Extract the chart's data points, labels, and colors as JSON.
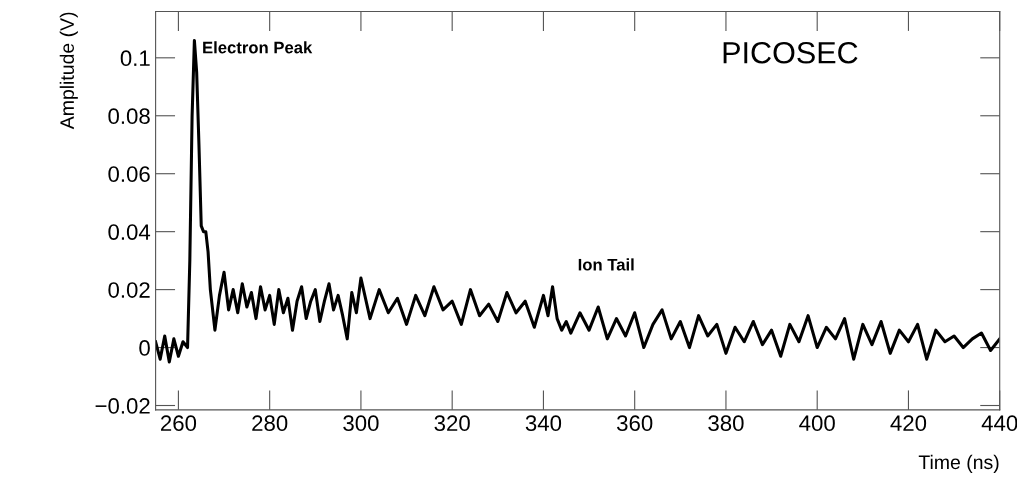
{
  "chart_data": {
    "type": "line",
    "xlabel": "Time (ns)",
    "ylabel": "Amplitude (V)",
    "annotations": [
      "Electron Peak",
      "Ion Tail",
      "PICOSEC"
    ],
    "series": [
      {
        "color": "#000000",
        "x": [
          255,
          256,
          257,
          258,
          259,
          260,
          261,
          262,
          262.5,
          263,
          263.5,
          264,
          264.5,
          265,
          265.5,
          266,
          266.5,
          267,
          268,
          269,
          270,
          271,
          272,
          273,
          274,
          275,
          276,
          277,
          278,
          279,
          280,
          281,
          282,
          283,
          284,
          285,
          286,
          287,
          288,
          289,
          290,
          291,
          292,
          293,
          294,
          295,
          296,
          297,
          298,
          299,
          300,
          302,
          304,
          306,
          308,
          310,
          312,
          314,
          316,
          318,
          320,
          322,
          324,
          326,
          328,
          330,
          332,
          334,
          336,
          338,
          340,
          341,
          342,
          343,
          344,
          345,
          346,
          348,
          350,
          352,
          354,
          356,
          358,
          360,
          362,
          364,
          366,
          368,
          370,
          372,
          374,
          376,
          378,
          380,
          382,
          384,
          386,
          388,
          390,
          392,
          394,
          396,
          398,
          400,
          402,
          404,
          406,
          408,
          410,
          412,
          414,
          416,
          418,
          420,
          422,
          424,
          426,
          428,
          430,
          432,
          434,
          436,
          438,
          440
        ],
        "values": [
          0.002,
          -0.004,
          0.004,
          -0.005,
          0.003,
          -0.003,
          0.002,
          0.0,
          0.03,
          0.08,
          0.106,
          0.095,
          0.07,
          0.042,
          0.04,
          0.04,
          0.033,
          0.02,
          0.006,
          0.018,
          0.026,
          0.013,
          0.02,
          0.012,
          0.022,
          0.014,
          0.019,
          0.01,
          0.021,
          0.013,
          0.018,
          0.008,
          0.02,
          0.012,
          0.017,
          0.006,
          0.016,
          0.021,
          0.01,
          0.016,
          0.02,
          0.009,
          0.016,
          0.022,
          0.013,
          0.018,
          0.011,
          0.003,
          0.019,
          0.012,
          0.024,
          0.01,
          0.02,
          0.012,
          0.017,
          0.008,
          0.018,
          0.011,
          0.021,
          0.013,
          0.016,
          0.008,
          0.02,
          0.011,
          0.015,
          0.009,
          0.019,
          0.012,
          0.016,
          0.007,
          0.018,
          0.011,
          0.021,
          0.01,
          0.006,
          0.009,
          0.005,
          0.012,
          0.006,
          0.014,
          0.003,
          0.01,
          0.004,
          0.012,
          0.0,
          0.008,
          0.013,
          0.003,
          0.009,
          0.0,
          0.011,
          0.004,
          0.008,
          -0.002,
          0.007,
          0.002,
          0.009,
          0.001,
          0.006,
          -0.003,
          0.008,
          0.002,
          0.011,
          0.0,
          0.007,
          0.003,
          0.01,
          -0.004,
          0.008,
          0.001,
          0.009,
          -0.002,
          0.006,
          0.002,
          0.008,
          -0.004,
          0.006,
          0.002,
          0.004,
          0.0,
          0.003,
          0.005,
          -0.001,
          0.003
        ]
      }
    ],
    "xlim": [
      255,
      440
    ],
    "ylim": [
      -0.0215,
      0.116
    ],
    "xticks": [
      260,
      280,
      300,
      320,
      340,
      360,
      380,
      400,
      420,
      440
    ],
    "yticks": [
      {
        "value": -0.02,
        "label": "−0.02"
      },
      0,
      0.02,
      0.04,
      0.06,
      0.08,
      0.1
    ],
    "grid": false,
    "marker": "none",
    "line_style": "solid"
  }
}
